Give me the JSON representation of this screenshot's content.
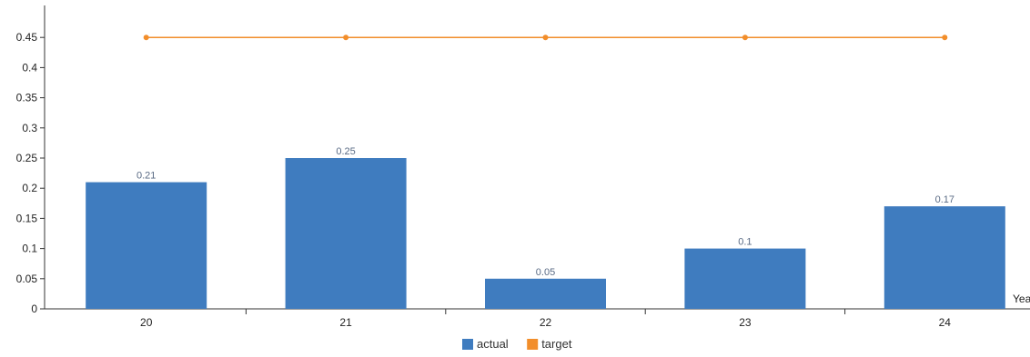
{
  "chart_data": {
    "type": "bar",
    "categories": [
      "20",
      "21",
      "22",
      "23",
      "24"
    ],
    "series": [
      {
        "name": "actual",
        "type": "bar",
        "values": [
          0.21,
          0.25,
          0.05,
          0.1,
          0.17
        ],
        "color": "#3f7cbf"
      },
      {
        "name": "target",
        "type": "line",
        "values": [
          0.45,
          0.45,
          0.45,
          0.45,
          0.45
        ],
        "color": "#f28e2b"
      }
    ],
    "xlabel": "Yea",
    "ylabel": "",
    "ylim": [
      0,
      0.5
    ],
    "yticks": [
      "0",
      "0.05",
      "0.1",
      "0.15",
      "0.2",
      "0.25",
      "0.3",
      "0.35",
      "0.4",
      "0.45"
    ],
    "grid": false,
    "legend": {
      "position": "bottom",
      "entries": [
        "actual",
        "target"
      ]
    }
  }
}
